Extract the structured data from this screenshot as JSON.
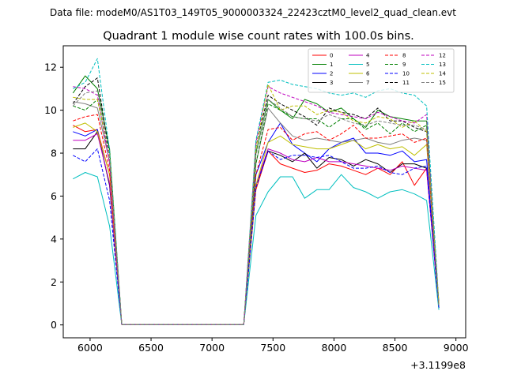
{
  "figure": {
    "suptitle": "Data file: modeM0/AS1T03_149T05_9000003324_22423cztM0_level2_quad_clean.evt",
    "title": "Quadrant 1 module wise count rates with 100.0s bins.",
    "x_offset_label": "+3.1199e8"
  },
  "chart_data": {
    "type": "line",
    "title": "Quadrant 1 module wise count rates with 100.0s bins.",
    "xlabel": "",
    "ylabel": "",
    "x_offset": 311990000,
    "xlim": [
      5780,
      9080
    ],
    "ylim": [
      -0.6,
      13.0
    ],
    "xticks": [
      6000,
      6500,
      7000,
      7500,
      8000,
      8500,
      9000
    ],
    "yticks": [
      0,
      2,
      4,
      6,
      8,
      10,
      12
    ],
    "grid": false,
    "legend": {
      "position": "top-right",
      "columns": 4
    },
    "x": [
      5860,
      5960,
      6060,
      6160,
      6260,
      6360,
      6460,
      6560,
      6660,
      6760,
      6860,
      6960,
      7060,
      7160,
      7260,
      7360,
      7460,
      7560,
      7660,
      7760,
      7860,
      7960,
      8060,
      8160,
      8260,
      8360,
      8460,
      8560,
      8660,
      8760,
      8860
    ],
    "series": [
      {
        "name": "0",
        "color": "#ff0000",
        "dash": "solid",
        "values": [
          9.3,
          9.0,
          9.1,
          7.0,
          0.02,
          0.02,
          0.02,
          0.02,
          0.02,
          0.02,
          0.02,
          0.02,
          0.02,
          0.02,
          0.02,
          6.3,
          8.1,
          7.5,
          7.3,
          7.1,
          7.2,
          7.5,
          7.4,
          7.2,
          7.0,
          7.3,
          7.0,
          7.6,
          6.5,
          7.3,
          0.8
        ]
      },
      {
        "name": "1",
        "color": "#008000",
        "dash": "solid",
        "values": [
          10.8,
          11.6,
          11.0,
          8.2,
          0.02,
          0.02,
          0.02,
          0.02,
          0.02,
          0.02,
          0.02,
          0.02,
          0.02,
          0.02,
          0.02,
          8.0,
          10.5,
          10.0,
          9.6,
          10.5,
          10.3,
          9.9,
          10.1,
          9.6,
          9.2,
          10.0,
          9.7,
          9.6,
          9.5,
          9.5,
          0.8
        ]
      },
      {
        "name": "2",
        "color": "#0000ff",
        "dash": "solid",
        "values": [
          9.0,
          8.8,
          9.1,
          6.5,
          0.02,
          0.02,
          0.02,
          0.02,
          0.02,
          0.02,
          0.02,
          0.02,
          0.02,
          0.02,
          0.02,
          7.0,
          8.5,
          9.4,
          8.4,
          8.0,
          7.6,
          8.2,
          8.5,
          8.7,
          8.0,
          8.0,
          7.9,
          8.1,
          7.6,
          7.7,
          0.8
        ]
      },
      {
        "name": "3",
        "color": "#000000",
        "dash": "solid",
        "values": [
          8.2,
          8.2,
          9.0,
          6.5,
          0.02,
          0.02,
          0.02,
          0.02,
          0.02,
          0.02,
          0.02,
          0.02,
          0.02,
          0.02,
          0.02,
          6.5,
          8.1,
          7.9,
          7.6,
          8.0,
          7.3,
          7.8,
          7.7,
          7.4,
          7.7,
          7.5,
          7.1,
          7.5,
          7.5,
          7.3,
          0.8
        ]
      },
      {
        "name": "4",
        "color": "#bf00bf",
        "dash": "solid",
        "values": [
          8.6,
          8.6,
          8.9,
          6.6,
          0.02,
          0.02,
          0.02,
          0.02,
          0.02,
          0.02,
          0.02,
          0.02,
          0.02,
          0.02,
          0.02,
          6.5,
          8.2,
          8.0,
          7.7,
          7.6,
          7.8,
          7.6,
          7.6,
          7.5,
          7.4,
          7.3,
          7.2,
          7.4,
          7.3,
          7.2,
          0.8
        ]
      },
      {
        "name": "5",
        "color": "#00bfbf",
        "dash": "solid",
        "values": [
          6.8,
          7.1,
          6.9,
          4.6,
          0.02,
          0.02,
          0.02,
          0.02,
          0.02,
          0.02,
          0.02,
          0.02,
          0.02,
          0.02,
          0.02,
          5.1,
          6.2,
          6.9,
          6.9,
          5.9,
          6.3,
          6.3,
          7.0,
          6.4,
          6.2,
          5.9,
          6.2,
          6.3,
          6.1,
          5.8,
          0.7
        ]
      },
      {
        "name": "6",
        "color": "#bfbf00",
        "dash": "solid",
        "values": [
          9.2,
          9.4,
          9.0,
          7.0,
          0.02,
          0.02,
          0.02,
          0.02,
          0.02,
          0.02,
          0.02,
          0.02,
          0.02,
          0.02,
          0.02,
          6.5,
          8.5,
          8.8,
          8.4,
          8.3,
          8.2,
          8.2,
          8.4,
          8.6,
          8.2,
          8.4,
          8.2,
          8.3,
          7.9,
          8.4,
          0.9
        ]
      },
      {
        "name": "7",
        "color": "#808080",
        "dash": "solid",
        "values": [
          10.4,
          10.3,
          10.1,
          7.6,
          0.02,
          0.02,
          0.02,
          0.02,
          0.02,
          0.02,
          0.02,
          0.02,
          0.02,
          0.02,
          0.02,
          7.5,
          10.1,
          9.4,
          8.8,
          8.6,
          8.7,
          8.6,
          8.5,
          8.6,
          8.7,
          8.5,
          8.4,
          8.6,
          8.7,
          8.6,
          0.9
        ]
      },
      {
        "name": "8",
        "color": "#ff0000",
        "dash": "dashed",
        "values": [
          9.5,
          9.7,
          9.8,
          7.2,
          0.02,
          0.02,
          0.02,
          0.02,
          0.02,
          0.02,
          0.02,
          0.02,
          0.02,
          0.02,
          0.02,
          7.0,
          9.1,
          9.2,
          8.6,
          8.9,
          9.0,
          8.6,
          8.9,
          9.3,
          8.7,
          8.7,
          8.8,
          8.9,
          8.5,
          8.7,
          0.9
        ]
      },
      {
        "name": "9",
        "color": "#008000",
        "dash": "dashed",
        "values": [
          10.2,
          10.0,
          10.5,
          7.8,
          0.02,
          0.02,
          0.02,
          0.02,
          0.02,
          0.02,
          0.02,
          0.02,
          0.02,
          0.02,
          0.02,
          7.5,
          10.3,
          10.0,
          9.7,
          9.6,
          9.6,
          9.2,
          9.6,
          9.6,
          9.1,
          9.4,
          8.9,
          9.4,
          9.0,
          9.3,
          0.9
        ]
      },
      {
        "name": "10",
        "color": "#0000ff",
        "dash": "dashed",
        "values": [
          7.9,
          7.6,
          8.2,
          5.8,
          0.02,
          0.02,
          0.02,
          0.02,
          0.02,
          0.02,
          0.02,
          0.02,
          0.02,
          0.02,
          0.02,
          6.4,
          8.1,
          7.7,
          7.9,
          7.9,
          7.8,
          7.9,
          7.6,
          7.3,
          7.3,
          7.4,
          7.1,
          7.0,
          7.3,
          7.4,
          0.8
        ]
      },
      {
        "name": "11",
        "color": "#000000",
        "dash": "dashed",
        "values": [
          10.3,
          11.1,
          11.5,
          7.9,
          0.02,
          0.02,
          0.02,
          0.02,
          0.02,
          0.02,
          0.02,
          0.02,
          0.02,
          0.02,
          0.02,
          8.3,
          10.7,
          10.3,
          10.0,
          9.7,
          9.3,
          10.1,
          9.9,
          9.8,
          9.6,
          10.1,
          9.5,
          9.5,
          9.2,
          9.0,
          1.0
        ]
      },
      {
        "name": "12",
        "color": "#bf00bf",
        "dash": "dashed",
        "values": [
          11.1,
          11.0,
          10.7,
          7.5,
          0.02,
          0.02,
          0.02,
          0.02,
          0.02,
          0.02,
          0.02,
          0.02,
          0.02,
          0.02,
          0.02,
          8.5,
          11.1,
          10.8,
          10.6,
          10.4,
          10.2,
          9.9,
          9.8,
          9.7,
          9.6,
          9.9,
          9.7,
          9.5,
          9.4,
          9.8,
          1.0
        ]
      },
      {
        "name": "13",
        "color": "#00bfbf",
        "dash": "dashed",
        "values": [
          11.0,
          11.3,
          12.4,
          8.1,
          0.02,
          0.02,
          0.02,
          0.02,
          0.02,
          0.02,
          0.02,
          0.02,
          0.02,
          0.02,
          0.02,
          8.6,
          11.3,
          11.4,
          11.2,
          11.1,
          11.0,
          10.8,
          10.7,
          10.8,
          10.6,
          10.9,
          11.0,
          10.8,
          10.7,
          10.2,
          1.0
        ]
      },
      {
        "name": "14",
        "color": "#bfbf00",
        "dash": "dashed",
        "values": [
          10.6,
          10.5,
          10.5,
          7.9,
          0.02,
          0.02,
          0.02,
          0.02,
          0.02,
          0.02,
          0.02,
          0.02,
          0.02,
          0.02,
          0.02,
          8.2,
          11.2,
          10.0,
          10.2,
          10.2,
          9.8,
          10.0,
          9.9,
          9.5,
          9.4,
          9.7,
          9.6,
          9.2,
          9.5,
          9.0,
          1.0
        ]
      },
      {
        "name": "15",
        "color": "#808080",
        "dash": "dashed",
        "values": [
          10.2,
          10.8,
          10.9,
          7.8,
          0.02,
          0.02,
          0.02,
          0.02,
          0.02,
          0.02,
          0.02,
          0.02,
          0.02,
          0.02,
          0.02,
          7.9,
          10.5,
          10.1,
          9.7,
          9.6,
          9.5,
          9.8,
          9.6,
          9.4,
          9.3,
          9.5,
          9.4,
          9.3,
          9.3,
          9.1,
          0.9
        ]
      }
    ]
  }
}
